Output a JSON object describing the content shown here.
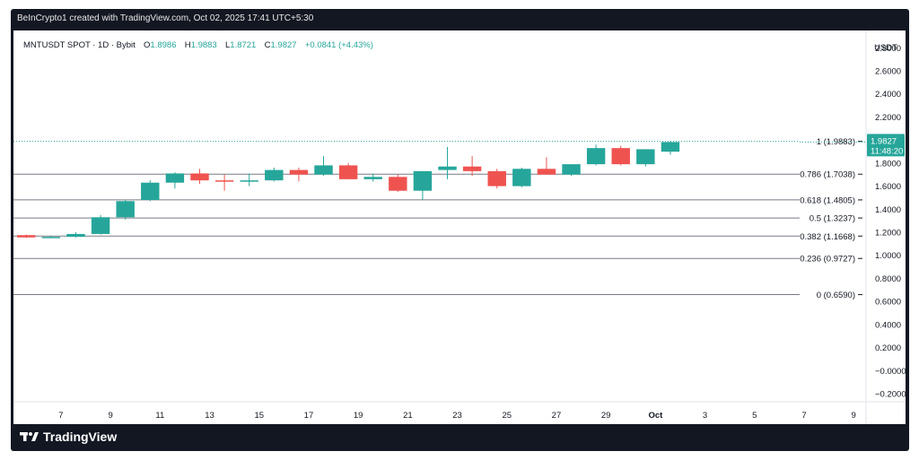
{
  "header": {
    "caption": "BeInCrypto1 created with TradingView.com, Oct 02, 2025 17:41 UTC+5:30"
  },
  "legend": {
    "symbol": "MNTUSDT SPOT · 1D · Bybit",
    "open_label": "O",
    "open": "1.8986",
    "high_label": "H",
    "high": "1.9883",
    "low_label": "L",
    "low": "1.8721",
    "close_label": "C",
    "close": "1.9827",
    "change": "+0.0841 (+4.43%)"
  },
  "footer": {
    "brand": "TradingView"
  },
  "colors": {
    "up": "#26a69a",
    "down": "#ef5350",
    "price_line": "#26a69a",
    "fib_line": "#787b86",
    "frame": "#131722"
  },
  "chart_data": {
    "type": "candlestick",
    "currency_label": "USDT",
    "ylim": [
      -0.27,
      2.95
    ],
    "y_ticks": [
      {
        "v": 2.8,
        "label": "2.8000"
      },
      {
        "v": 2.6,
        "label": "2.6000"
      },
      {
        "v": 2.4,
        "label": "2.4000"
      },
      {
        "v": 2.2,
        "label": "2.2000"
      },
      {
        "v": 1.8,
        "label": "1.8000"
      },
      {
        "v": 1.6,
        "label": "1.6000"
      },
      {
        "v": 1.4,
        "label": "1.4000"
      },
      {
        "v": 1.2,
        "label": "1.2000"
      },
      {
        "v": 1.0,
        "label": "1.0000"
      },
      {
        "v": 0.8,
        "label": "0.8000"
      },
      {
        "v": 0.6,
        "label": "0.6000"
      },
      {
        "v": 0.4,
        "label": "0.4000"
      },
      {
        "v": 0.2,
        "label": "0.2000"
      },
      {
        "v": 0.0,
        "label": "−0.0000"
      },
      {
        "v": -0.2,
        "label": "−0.2000"
      }
    ],
    "x_ticks": [
      {
        "day": 7,
        "label": "7"
      },
      {
        "day": 9,
        "label": "9"
      },
      {
        "day": 11,
        "label": "11"
      },
      {
        "day": 13,
        "label": "13"
      },
      {
        "day": 15,
        "label": "15"
      },
      {
        "day": 17,
        "label": "17"
      },
      {
        "day": 19,
        "label": "19"
      },
      {
        "day": 21,
        "label": "21"
      },
      {
        "day": 23,
        "label": "23"
      },
      {
        "day": 25,
        "label": "25"
      },
      {
        "day": 27,
        "label": "27"
      },
      {
        "day": 29,
        "label": "29"
      },
      {
        "day": 31,
        "label": "Oct",
        "bold": true
      },
      {
        "day": 33,
        "label": "3"
      },
      {
        "day": 35,
        "label": "5"
      },
      {
        "day": 37,
        "label": "7"
      },
      {
        "day": 39,
        "label": "9"
      }
    ],
    "x_range": [
      5.3,
      39.5
    ],
    "candles": [
      {
        "day": 5.6,
        "o": 1.175,
        "h": 1.18,
        "l": 1.15,
        "c": 1.155
      },
      {
        "day": 6.6,
        "o": 1.155,
        "h": 1.17,
        "l": 1.15,
        "c": 1.16
      },
      {
        "day": 7.6,
        "o": 1.16,
        "h": 1.2,
        "l": 1.155,
        "c": 1.185
      },
      {
        "day": 8.6,
        "o": 1.185,
        "h": 1.35,
        "l": 1.18,
        "c": 1.33
      },
      {
        "day": 9.6,
        "o": 1.33,
        "h": 1.48,
        "l": 1.31,
        "c": 1.47
      },
      {
        "day": 10.6,
        "o": 1.48,
        "h": 1.65,
        "l": 1.47,
        "c": 1.63
      },
      {
        "day": 11.6,
        "o": 1.63,
        "h": 1.72,
        "l": 1.58,
        "c": 1.71
      },
      {
        "day": 12.6,
        "o": 1.71,
        "h": 1.75,
        "l": 1.62,
        "c": 1.65
      },
      {
        "day": 13.6,
        "o": 1.65,
        "h": 1.7,
        "l": 1.56,
        "c": 1.64
      },
      {
        "day": 14.6,
        "o": 1.64,
        "h": 1.71,
        "l": 1.6,
        "c": 1.65
      },
      {
        "day": 15.6,
        "o": 1.65,
        "h": 1.76,
        "l": 1.64,
        "c": 1.74
      },
      {
        "day": 16.6,
        "o": 1.74,
        "h": 1.76,
        "l": 1.64,
        "c": 1.7
      },
      {
        "day": 17.6,
        "o": 1.7,
        "h": 1.86,
        "l": 1.69,
        "c": 1.78
      },
      {
        "day": 18.6,
        "o": 1.78,
        "h": 1.8,
        "l": 1.66,
        "c": 1.66
      },
      {
        "day": 19.6,
        "o": 1.66,
        "h": 1.71,
        "l": 1.64,
        "c": 1.68
      },
      {
        "day": 20.6,
        "o": 1.68,
        "h": 1.7,
        "l": 1.55,
        "c": 1.56
      },
      {
        "day": 21.6,
        "o": 1.56,
        "h": 1.73,
        "l": 1.48,
        "c": 1.73
      },
      {
        "day": 22.6,
        "o": 1.74,
        "h": 1.94,
        "l": 1.66,
        "c": 1.77
      },
      {
        "day": 23.6,
        "o": 1.77,
        "h": 1.86,
        "l": 1.69,
        "c": 1.73
      },
      {
        "day": 24.6,
        "o": 1.73,
        "h": 1.75,
        "l": 1.58,
        "c": 1.6
      },
      {
        "day": 25.6,
        "o": 1.6,
        "h": 1.76,
        "l": 1.59,
        "c": 1.75
      },
      {
        "day": 26.6,
        "o": 1.75,
        "h": 1.85,
        "l": 1.7,
        "c": 1.7
      },
      {
        "day": 27.6,
        "o": 1.7,
        "h": 1.78,
        "l": 1.69,
        "c": 1.79
      },
      {
        "day": 28.6,
        "o": 1.79,
        "h": 1.96,
        "l": 1.78,
        "c": 1.93
      },
      {
        "day": 29.6,
        "o": 1.93,
        "h": 1.95,
        "l": 1.78,
        "c": 1.79
      },
      {
        "day": 30.6,
        "o": 1.79,
        "h": 1.92,
        "l": 1.77,
        "c": 1.92
      },
      {
        "day": 31.6,
        "o": 1.8986,
        "h": 1.9883,
        "l": 1.8721,
        "c": 1.9827
      }
    ],
    "fib_levels": [
      {
        "value": 1.9883,
        "label": "1 (1.9883)"
      },
      {
        "value": 1.7038,
        "label": "0.786 (1.7038)"
      },
      {
        "value": 1.4805,
        "label": "0.618 (1.4805)"
      },
      {
        "value": 1.3237,
        "label": "0.5 (1.3237)"
      },
      {
        "value": 1.1668,
        "label": "0.382 (1.1668)"
      },
      {
        "value": 0.9727,
        "label": "0.236 (0.9727)"
      },
      {
        "value": 0.659,
        "label": "0 (0.6590)"
      }
    ],
    "last_price": {
      "value": 1.9827,
      "label": "1.9827",
      "countdown": "11:48:20"
    }
  }
}
